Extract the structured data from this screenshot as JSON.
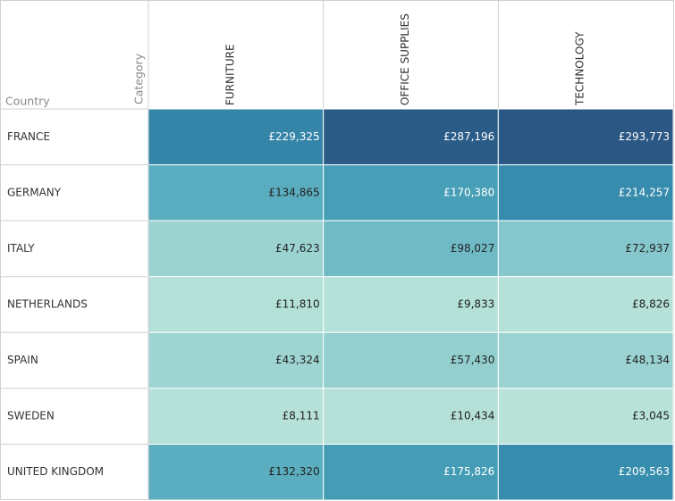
{
  "chart_data": {
    "type": "heatmap",
    "row_label": "Country",
    "column_label": "Category",
    "categories": [
      "FRANCE",
      "GERMANY",
      "ITALY",
      "NETHERLANDS",
      "SPAIN",
      "SWEDEN",
      "UNITED KINGDOM"
    ],
    "series": [
      {
        "name": "FURNITURE",
        "values": [
          229325,
          134865,
          47623,
          11810,
          43324,
          8111,
          132320
        ],
        "value_labels": [
          "£229,325",
          "£134,865",
          "£47,623",
          "£11,810",
          "£43,324",
          "£8,111",
          "£132,320"
        ]
      },
      {
        "name": "OFFICE SUPPLIES",
        "values": [
          287196,
          170380,
          98027,
          9833,
          57430,
          10434,
          175826
        ],
        "value_labels": [
          "£287,196",
          "£170,380",
          "£98,027",
          "£9,833",
          "£57,430",
          "£10,434",
          "£175,826"
        ]
      },
      {
        "name": "TECHNOLOGY",
        "values": [
          293773,
          214257,
          72937,
          8826,
          48134,
          3045,
          209563
        ],
        "value_labels": [
          "£293,773",
          "£214,257",
          "£72,937",
          "£8,826",
          "£48,134",
          "£3,045",
          "£209,563"
        ]
      }
    ],
    "colorscale": [
      "#b9e3d9",
      "#98d2d0",
      "#6eb9c6",
      "#52a9bc",
      "#3993b0",
      "#337ea5",
      "#2a5783"
    ]
  }
}
